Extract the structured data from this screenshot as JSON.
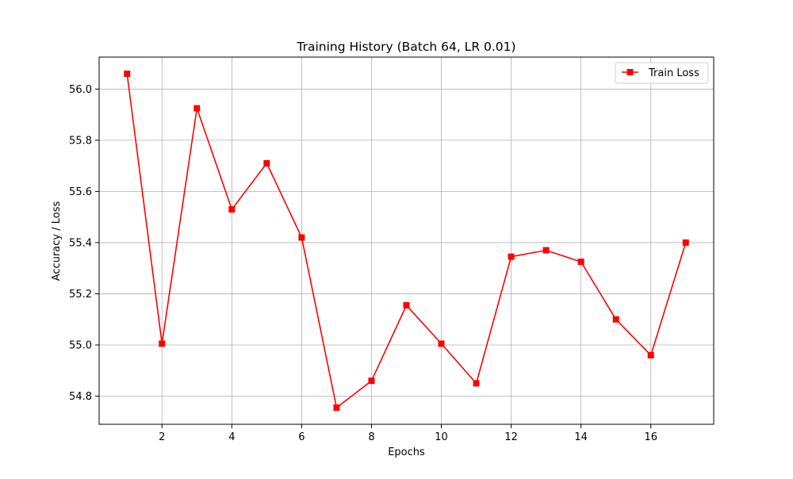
{
  "chart_data": {
    "type": "line",
    "title": "Training History (Batch 64, LR 0.01)",
    "xlabel": "Epochs",
    "ylabel": "Accuracy / Loss",
    "x": [
      1,
      2,
      3,
      4,
      5,
      6,
      7,
      8,
      9,
      10,
      11,
      12,
      13,
      14,
      15,
      16,
      17
    ],
    "series": [
      {
        "name": "Train Loss",
        "color": "#ff0000",
        "marker": "square",
        "values": [
          56.06,
          55.005,
          55.925,
          55.53,
          55.71,
          55.42,
          54.755,
          54.86,
          55.155,
          55.005,
          54.85,
          55.345,
          55.37,
          55.325,
          55.1,
          54.96,
          55.4
        ]
      }
    ],
    "xlim": [
      0.2,
      17.8
    ],
    "ylim": [
      54.69,
      56.125
    ],
    "xticks": [
      2,
      4,
      6,
      8,
      10,
      12,
      14,
      16
    ],
    "xtick_labels": [
      "2",
      "4",
      "6",
      "8",
      "10",
      "12",
      "14",
      "16"
    ],
    "yticks": [
      54.8,
      55.0,
      55.2,
      55.4,
      55.6,
      55.8,
      56.0
    ],
    "ytick_labels": [
      "54.8",
      "55.0",
      "55.2",
      "55.4",
      "55.6",
      "55.8",
      "56.0"
    ],
    "grid": true,
    "legend_position": "top-right"
  }
}
